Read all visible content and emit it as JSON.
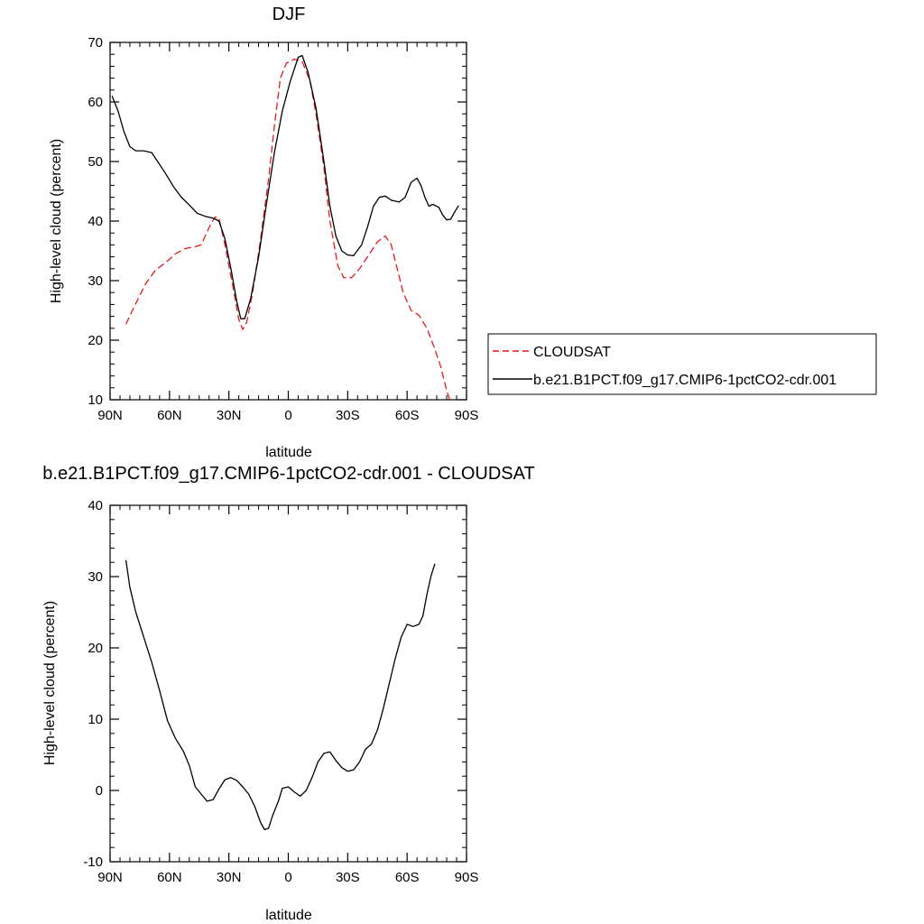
{
  "chart_data": [
    {
      "type": "line",
      "title": "DJF",
      "xlabel": "latitude",
      "ylabel": "High-level cloud (percent)",
      "xlim": [
        90,
        -90
      ],
      "ylim": [
        10,
        70
      ],
      "x_ticks": [
        90,
        60,
        30,
        0,
        -30,
        -60,
        -90
      ],
      "x_tick_labels": [
        "90N",
        "60N",
        "30N",
        "0",
        "30S",
        "60S",
        "90S"
      ],
      "y_ticks": [
        10,
        20,
        30,
        40,
        50,
        60,
        70
      ],
      "y_tick_labels": [
        "10",
        "20",
        "30",
        "40",
        "50",
        "60",
        "70"
      ],
      "grid": false,
      "legend_position": "right",
      "series": [
        {
          "name": "CLOUDSAT",
          "color": "#e41a1c",
          "dash": "dashed",
          "points": [
            [
              82,
              22.7
            ],
            [
              78,
              25.5
            ],
            [
              72,
              29.5
            ],
            [
              67,
              31.8
            ],
            [
              62,
              33
            ],
            [
              57,
              34.5
            ],
            [
              52,
              35.4
            ],
            [
              47,
              35.7
            ],
            [
              44,
              36
            ],
            [
              40,
              38.9
            ],
            [
              37,
              40.7
            ],
            [
              35,
              40.5
            ],
            [
              32,
              36
            ],
            [
              28,
              29
            ],
            [
              25,
              23.5
            ],
            [
              23,
              21.8
            ],
            [
              21,
              23
            ],
            [
              18,
              28
            ],
            [
              14,
              37
            ],
            [
              10,
              47
            ],
            [
              7,
              56
            ],
            [
              4,
              64
            ],
            [
              1,
              66.5
            ],
            [
              -3,
              67.2
            ],
            [
              -7,
              66.8
            ],
            [
              -11,
              63.5
            ],
            [
              -14,
              58
            ],
            [
              -18,
              49
            ],
            [
              -21,
              40
            ],
            [
              -25,
              32.5
            ],
            [
              -28,
              30.5
            ],
            [
              -32,
              30.5
            ],
            [
              -36,
              32
            ],
            [
              -40,
              34
            ],
            [
              -45,
              36.5
            ],
            [
              -49,
              37.5
            ],
            [
              -52,
              36
            ],
            [
              -55,
              32
            ],
            [
              -58,
              28
            ],
            [
              -62,
              25
            ],
            [
              -66,
              24.2
            ],
            [
              -70,
              22
            ],
            [
              -74,
              18.5
            ],
            [
              -77,
              15.5
            ],
            [
              -80,
              11.5
            ],
            [
              -82,
              9.5
            ]
          ]
        },
        {
          "name": "b.e21.B1PCT.f09_g17.CMIP6-1pctCO2-cdr.001",
          "color": "#000000",
          "dash": "solid",
          "points": [
            [
              89,
              61
            ],
            [
              86,
              58.5
            ],
            [
              83,
              55
            ],
            [
              80,
              52.5
            ],
            [
              77,
              51.8
            ],
            [
              73,
              51.8
            ],
            [
              69,
              51.5
            ],
            [
              66,
              50
            ],
            [
              62,
              48
            ],
            [
              58,
              45.8
            ],
            [
              54,
              44
            ],
            [
              50,
              42.7
            ],
            [
              46,
              41.3
            ],
            [
              42,
              40.8
            ],
            [
              38,
              40.5
            ],
            [
              35,
              40
            ],
            [
              32,
              37
            ],
            [
              29,
              32
            ],
            [
              26,
              26.5
            ],
            [
              24,
              23.6
            ],
            [
              22,
              23.6
            ],
            [
              19,
              27
            ],
            [
              15,
              34
            ],
            [
              11,
              43
            ],
            [
              7,
              51.5
            ],
            [
              3,
              58.5
            ],
            [
              -1,
              63.5
            ],
            [
              -5,
              67.5
            ],
            [
              -7,
              67.8
            ],
            [
              -10,
              65
            ],
            [
              -14,
              59
            ],
            [
              -18,
              50
            ],
            [
              -21,
              42.5
            ],
            [
              -24,
              37.5
            ],
            [
              -27,
              35
            ],
            [
              -30,
              34.3
            ],
            [
              -33,
              34.2
            ],
            [
              -37,
              36
            ],
            [
              -40,
              39
            ],
            [
              -43,
              42.5
            ],
            [
              -46,
              44
            ],
            [
              -49,
              44.2
            ],
            [
              -52,
              43.5
            ],
            [
              -56,
              43.2
            ],
            [
              -59,
              44
            ],
            [
              -62,
              46.5
            ],
            [
              -65,
              47.2
            ],
            [
              -67,
              46
            ],
            [
              -69,
              44
            ],
            [
              -71,
              42.5
            ],
            [
              -73,
              42.8
            ],
            [
              -76,
              42.3
            ],
            [
              -78,
              41
            ],
            [
              -80,
              40.2
            ],
            [
              -82,
              40.3
            ],
            [
              -84,
              41.5
            ],
            [
              -86,
              42.6
            ]
          ]
        }
      ]
    },
    {
      "type": "line",
      "title": "b.e21.B1PCT.f09_g17.CMIP6-1pctCO2-cdr.001 - CLOUDSAT",
      "xlabel": "latitude",
      "ylabel": "High-level cloud (percent)",
      "xlim": [
        90,
        -90
      ],
      "ylim": [
        -10,
        40
      ],
      "x_ticks": [
        90,
        60,
        30,
        0,
        -30,
        -60,
        -90
      ],
      "x_tick_labels": [
        "90N",
        "60N",
        "30N",
        "0",
        "30S",
        "60S",
        "90S"
      ],
      "y_ticks": [
        -10,
        0,
        10,
        20,
        30,
        40
      ],
      "y_tick_labels": [
        "-10",
        "0",
        "10",
        "20",
        "30",
        "40"
      ],
      "grid": false,
      "series": [
        {
          "color": "#000000",
          "dash": "solid",
          "points": [
            [
              82,
              32.3
            ],
            [
              80,
              28.5
            ],
            [
              77,
              25
            ],
            [
              73,
              21.5
            ],
            [
              69,
              18
            ],
            [
              65,
              14
            ],
            [
              61,
              9.8
            ],
            [
              57,
              7.3
            ],
            [
              53,
              5.5
            ],
            [
              50,
              3.5
            ],
            [
              47,
              0.5
            ],
            [
              44,
              -0.5
            ],
            [
              41,
              -1.5
            ],
            [
              38,
              -1.3
            ],
            [
              35,
              0.2
            ],
            [
              32,
              1.5
            ],
            [
              29,
              1.8
            ],
            [
              26,
              1.4
            ],
            [
              23,
              0.5
            ],
            [
              20,
              -0.5
            ],
            [
              17,
              -2.2
            ],
            [
              14,
              -4.5
            ],
            [
              12,
              -5.5
            ],
            [
              10,
              -5.3
            ],
            [
              8,
              -3.6
            ],
            [
              5,
              -1.5
            ],
            [
              3,
              0.3
            ],
            [
              0,
              0.5
            ],
            [
              -3,
              -0.2
            ],
            [
              -6,
              -0.8
            ],
            [
              -9,
              0
            ],
            [
              -12,
              1.8
            ],
            [
              -15,
              4
            ],
            [
              -18,
              5.2
            ],
            [
              -21,
              5.4
            ],
            [
              -24,
              4.2
            ],
            [
              -27,
              3.2
            ],
            [
              -30,
              2.7
            ],
            [
              -33,
              2.9
            ],
            [
              -36,
              4
            ],
            [
              -39,
              5.8
            ],
            [
              -42,
              6.5
            ],
            [
              -45,
              8.5
            ],
            [
              -48,
              11.5
            ],
            [
              -51,
              15
            ],
            [
              -54,
              18.5
            ],
            [
              -57,
              21.5
            ],
            [
              -60,
              23.3
            ],
            [
              -63,
              23
            ],
            [
              -66,
              23.3
            ],
            [
              -68,
              24.5
            ],
            [
              -70,
              27.5
            ],
            [
              -72,
              30
            ],
            [
              -74,
              31.8
            ]
          ]
        }
      ]
    }
  ]
}
